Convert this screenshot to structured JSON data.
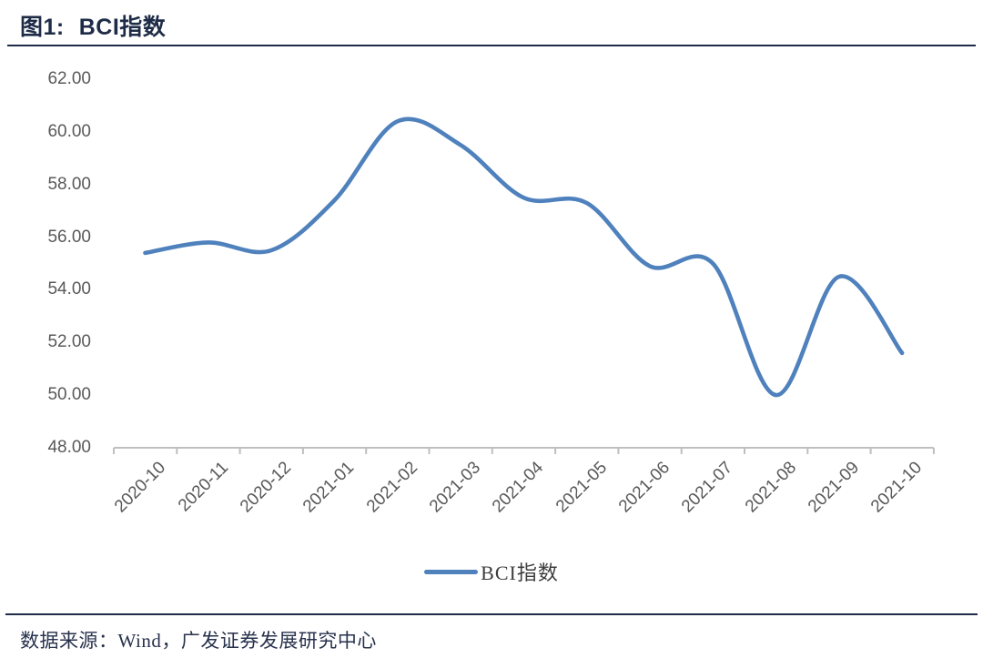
{
  "header": {
    "figure_label": "图1:",
    "title": "BCI指数"
  },
  "chart_data": {
    "type": "line",
    "title": "BCI指数",
    "smooth": true,
    "grid": false,
    "legend_position": "bottom",
    "categories": [
      "2020-10",
      "2020-11",
      "2020-12",
      "2021-01",
      "2021-02",
      "2021-03",
      "2021-04",
      "2021-05",
      "2021-06",
      "2021-07",
      "2021-08",
      "2021-09",
      "2021-10"
    ],
    "series": [
      {
        "name": "BCI指数",
        "values": [
          55.4,
          55.8,
          55.5,
          57.4,
          60.4,
          59.5,
          57.5,
          57.3,
          54.9,
          55.0,
          50.0,
          54.5,
          51.6
        ]
      }
    ],
    "ylim": [
      48,
      62
    ],
    "ytick_step": 2,
    "ytick_labels": [
      "62.00",
      "60.00",
      "58.00",
      "56.00",
      "54.00",
      "52.00",
      "50.00",
      "48.00"
    ],
    "xlabel": "",
    "ylabel": "",
    "line_color": "#4f81bd",
    "axis_color": "#bfbfbf",
    "tick_label_color": "#595959"
  },
  "legend": {
    "label": "BCI指数"
  },
  "footer": {
    "source_text": "数据来源：Wind，广发证券发展研究中心"
  }
}
